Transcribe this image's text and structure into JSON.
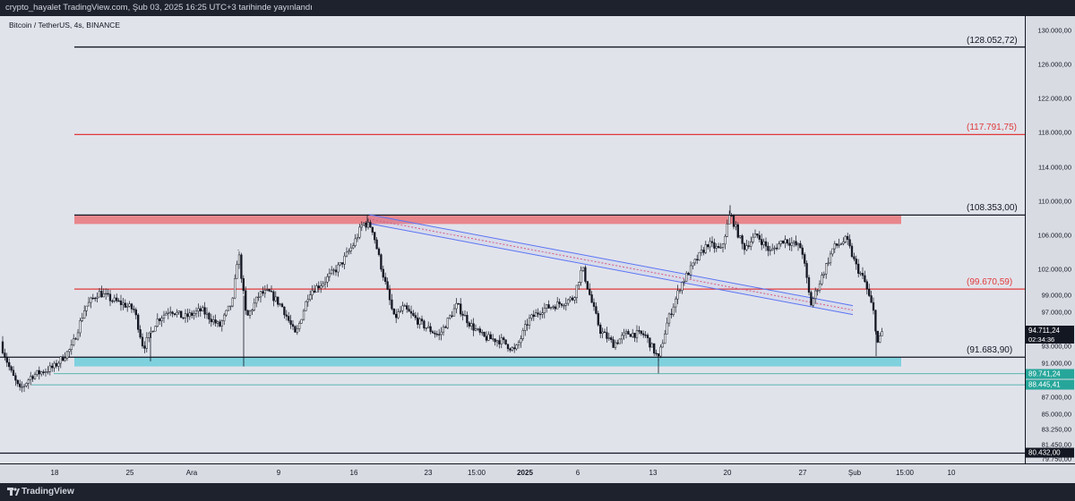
{
  "header": {
    "publisher": "crypto_hayalet TradingView.com, Şub 03, 2025 16:25 UTC+3 tarihinde yayınlandı"
  },
  "chart": {
    "symbol": "Bitcoin / TetherUS, 4s, BINANCE"
  },
  "footer": {
    "brand": "TradingView"
  },
  "colors": {
    "red": "#e03a3a",
    "black": "#131722",
    "redZone": "#e8868c",
    "cyanZone": "#7fd1de",
    "teal": "#26a69a",
    "trend": "#5b74f4"
  },
  "price_axis": {
    "ticks": [
      "130.000,00",
      "126.000,00",
      "122.000,00",
      "118.000,00",
      "114.000,00",
      "110.000,00",
      "106.000,00",
      "102.000,00",
      "99.000,00",
      "97.000,00",
      "93.000,00",
      "91.000,00",
      "87.000,00",
      "85.000,00",
      "83.250,00",
      "81.450,00",
      "79.750,00"
    ],
    "current_price": "94.711,24",
    "countdown": "02:34:36",
    "tag_teal_1": "89.741,24",
    "tag_teal_2": "88.445,41",
    "tag_bottom": "80.432,00"
  },
  "levels": {
    "l1": "(128.052,72)",
    "l2": "(117.791,75)",
    "l3": "(108.353,00)",
    "l4": "(99.670,59)",
    "l5": "(91.683,90)"
  },
  "time_axis": {
    "labels": [
      {
        "text": "18",
        "bold": false
      },
      {
        "text": "25",
        "bold": false
      },
      {
        "text": "Ara",
        "bold": false
      },
      {
        "text": "9",
        "bold": false
      },
      {
        "text": "16",
        "bold": false
      },
      {
        "text": "23",
        "bold": false
      },
      {
        "text": "15:00",
        "bold": false
      },
      {
        "text": "2025",
        "bold": true
      },
      {
        "text": "6",
        "bold": false
      },
      {
        "text": "13",
        "bold": false
      },
      {
        "text": "20",
        "bold": false
      },
      {
        "text": "27",
        "bold": false
      },
      {
        "text": "Şub",
        "bold": false
      },
      {
        "text": "15:00",
        "bold": false
      },
      {
        "text": "10",
        "bold": false
      }
    ]
  },
  "chart_data": {
    "type": "candlestick",
    "title": "Bitcoin / TetherUS, 4s, BINANCE",
    "ylim": [
      79750,
      130000
    ],
    "x_ticks": [
      "18",
      "25",
      "Ara",
      "9",
      "16",
      "23",
      "15:00",
      "2025",
      "6",
      "13",
      "20",
      "27",
      "Şub",
      "15:00",
      "10"
    ],
    "horizontal_levels": [
      128052.72,
      117791.75,
      108353.0,
      99670.59,
      91683.9
    ],
    "zones": [
      {
        "name": "resistance",
        "from": 107300,
        "to": 108353
      },
      {
        "name": "support",
        "from": 90600,
        "to": 91683.9
      }
    ],
    "close_path": [
      [
        "18",
        90500
      ],
      [
        "25",
        98500
      ],
      [
        "Ara",
        96000
      ],
      [
        "9",
        98500
      ],
      [
        "16",
        107500
      ],
      [
        "23",
        96000
      ],
      [
        "15:00",
        94000
      ],
      [
        "2025",
        94500
      ],
      [
        "6",
        101500
      ],
      [
        "13",
        92000
      ],
      [
        "20",
        106000
      ],
      [
        "27",
        100000
      ],
      [
        "Şub",
        94711.24
      ]
    ],
    "last_price": 94711.24
  }
}
